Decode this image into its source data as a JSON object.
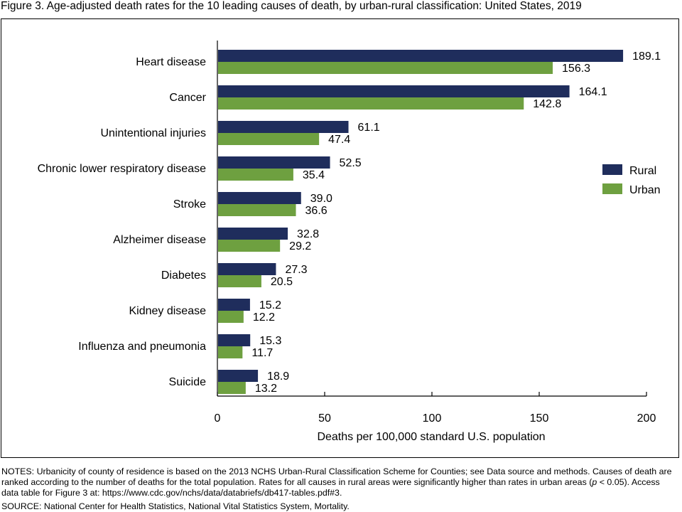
{
  "figure_title": "Figure 3. Age-adjusted death rates for the 10 leading causes of death, by urban-rural classification: United States, 2019",
  "chart_data": {
    "type": "bar",
    "orientation": "horizontal",
    "title": "Figure 3. Age-adjusted death rates for the 10 leading causes of death, by urban-rural classification: United States, 2019",
    "xlabel": "Deaths per 100,000 standard U.S. population",
    "ylabel": "",
    "xlim": [
      0,
      200
    ],
    "xticks": [
      0,
      50,
      100,
      150,
      200
    ],
    "grid": false,
    "legend_position": "right",
    "categories": [
      "Heart disease",
      "Cancer",
      "Unintentional injuries",
      "Chronic lower respiratory disease",
      "Stroke",
      "Alzheimer disease",
      "Diabetes",
      "Kidney disease",
      "Influenza and pneumonia",
      "Suicide"
    ],
    "series": [
      {
        "name": "Rural",
        "color": "#1f2d5c",
        "values": [
          189.1,
          164.1,
          61.1,
          52.5,
          39.0,
          32.8,
          27.3,
          15.2,
          15.3,
          18.9
        ],
        "labels": [
          "189.1",
          "164.1",
          "61.1",
          "52.5",
          "39.0",
          "32.8",
          "27.3",
          "15.2",
          "15.3",
          "18.9"
        ]
      },
      {
        "name": "Urban",
        "color": "#6ea040",
        "values": [
          156.3,
          142.8,
          47.4,
          35.4,
          36.6,
          29.2,
          20.5,
          12.2,
          11.7,
          13.2
        ],
        "labels": [
          "156.3",
          "142.8",
          "47.4",
          "35.4",
          "36.6",
          "29.2",
          "20.5",
          "12.2",
          "11.7",
          "13.2"
        ]
      }
    ]
  },
  "notes": {
    "label": "NOTES:",
    "text_before_p": " Urbanicity of county of residence is based on the 2013 NCHS Urban-Rural Classification Scheme for Counties; see Data source and methods. Causes of death are ranked according to the number of deaths for the total population. Rates for all causes in rural areas were significantly higher than rates in urban areas (",
    "p_symbol": "p",
    "text_after_p": " < 0.05). Access data table for Figure 3 at: https://www.cdc.gov/nchs/data/databriefs/db417-tables.pdf#3."
  },
  "source": "SOURCE: National Center for Health Statistics, National Vital Statistics System, Mortality."
}
